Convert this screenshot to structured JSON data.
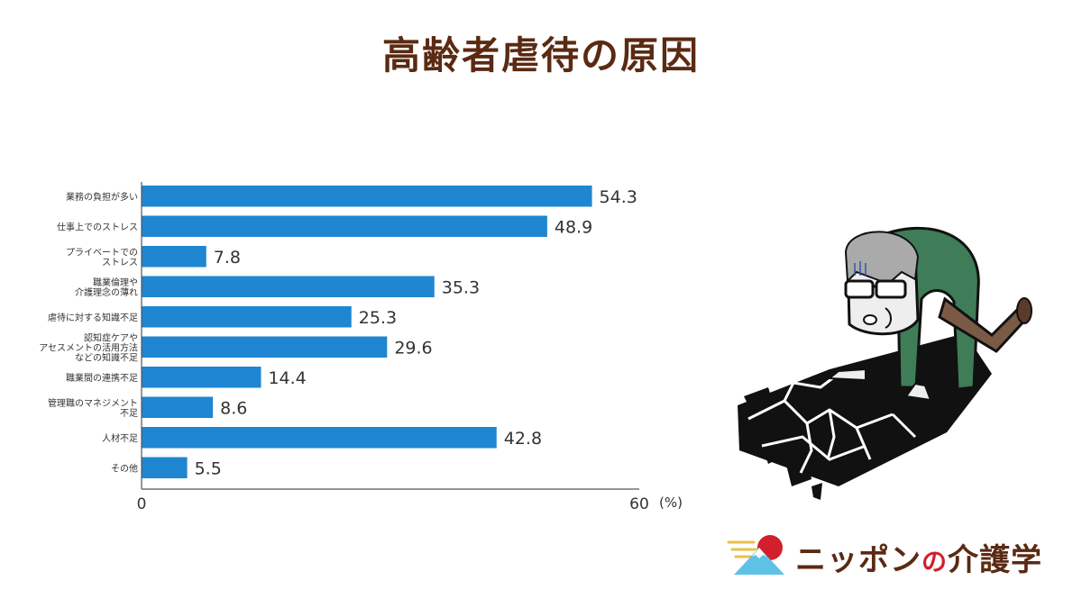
{
  "title": "高齢者虐待の原因",
  "chart_data": {
    "type": "bar",
    "orientation": "horizontal",
    "title": "高齢者虐待の原因",
    "categories": [
      [
        "業務の負担が多い"
      ],
      [
        "仕事上でのストレス"
      ],
      [
        "プライベートでの",
        "ストレス"
      ],
      [
        "職業倫理や",
        "介護理念の薄れ"
      ],
      [
        "虐待に対する知識不足"
      ],
      [
        "認知症ケアや",
        "アセスメントの活用方法",
        "などの知識不足"
      ],
      [
        "職業間の連携不足"
      ],
      [
        "管理職のマネジメント",
        "不足"
      ],
      [
        "人材不足"
      ],
      [
        "その他"
      ]
    ],
    "values": [
      54.3,
      48.9,
      7.8,
      35.3,
      25.3,
      29.6,
      14.4,
      8.6,
      42.8,
      5.5
    ],
    "value_labels": [
      "54.3",
      "48.9",
      "7.8",
      "35.3",
      "25.3",
      "29.6",
      "14.4",
      "8.6",
      "42.8",
      "5.5"
    ],
    "xlim": [
      0,
      60
    ],
    "x_tick_labels": [
      "0",
      "60"
    ],
    "x_unit": "(%)",
    "bar_color": "#1f86d1",
    "grid": false
  },
  "logo": {
    "name_part1": "ニッポン",
    "name_no": "の",
    "name_part2": "介護学",
    "text_color": "#5a2a12",
    "accent_color": "#d21f2a"
  },
  "illustration": "exhausted-elderly-caregiver-crawling-on-cracked-floor"
}
